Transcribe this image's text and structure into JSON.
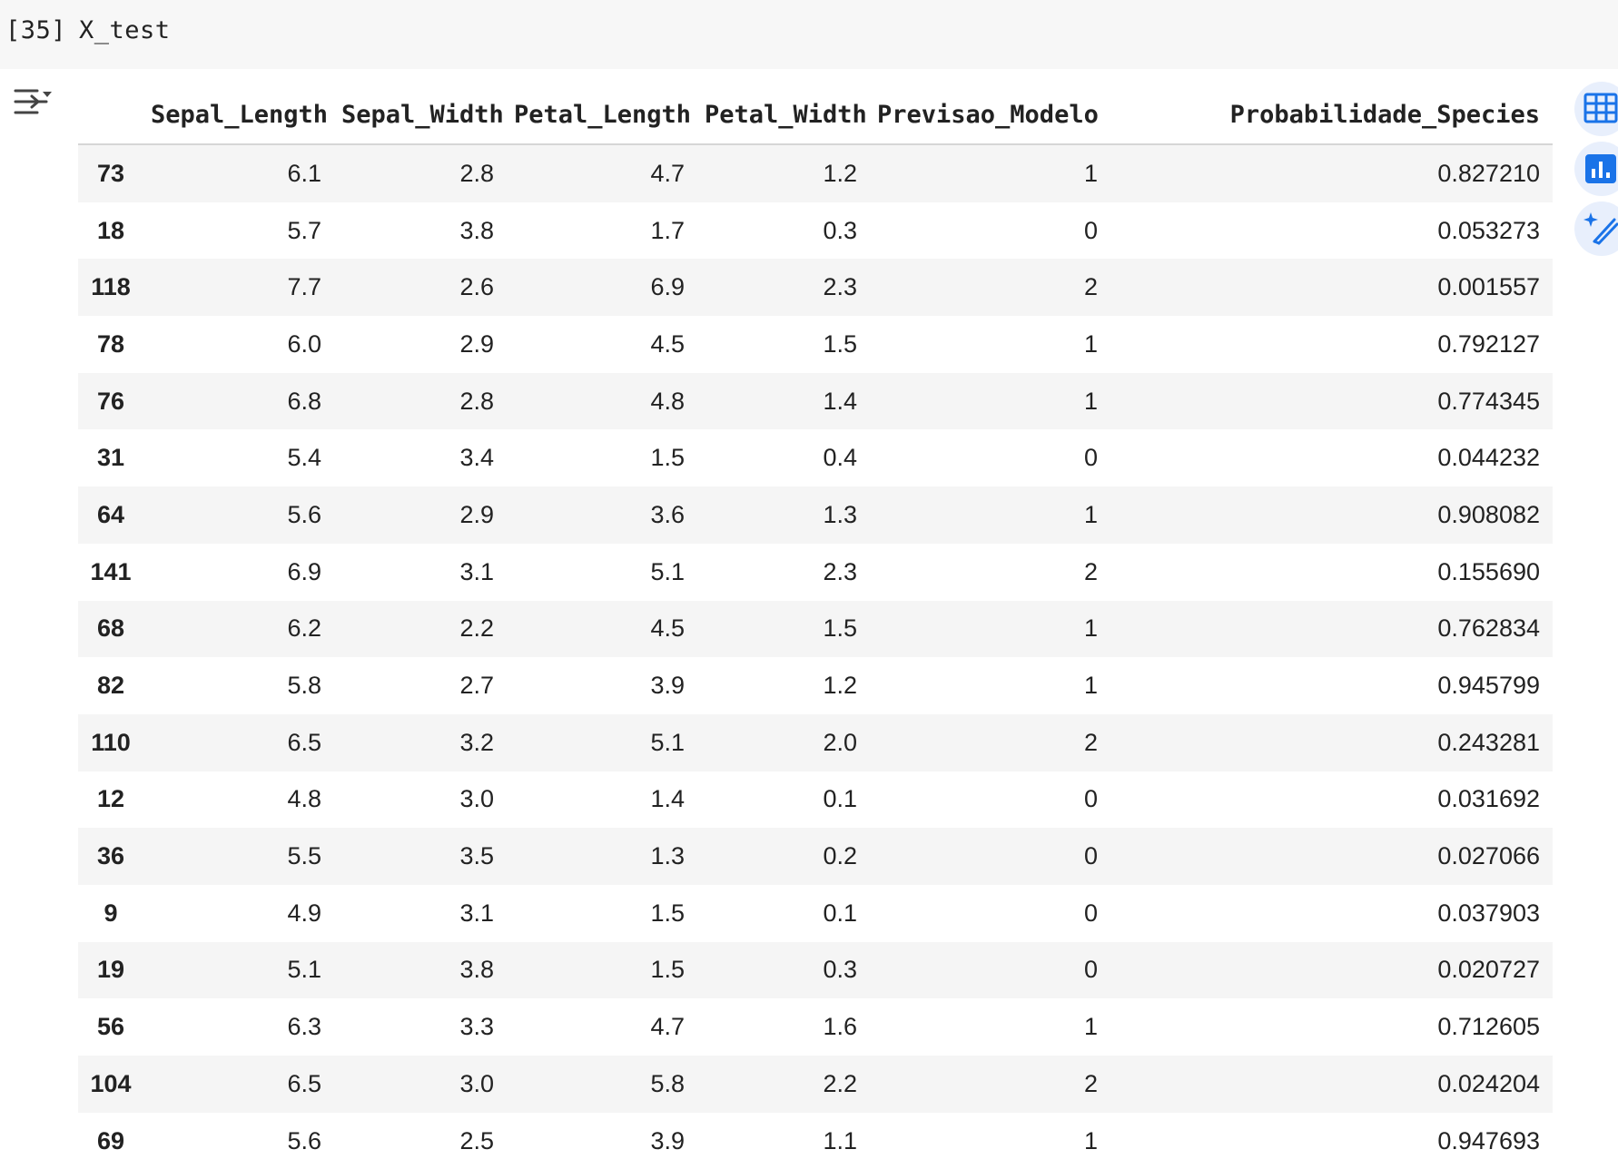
{
  "cell": {
    "execution_count": "[35]",
    "code": "X_test"
  },
  "icons": {
    "output_toggle": "output-options-icon",
    "table_view": "table-icon",
    "chart_suggest": "bar-chart-icon",
    "magic_edit": "magic-wand-icon"
  },
  "colors": {
    "accent_blue": "#1a73e8",
    "tool_bg": "#e8effc",
    "row_stripe": "#f5f5f5",
    "cell_bg": "#f7f7f7"
  },
  "table": {
    "columns": [
      "",
      "Sepal_Length",
      "Sepal_Width",
      "Petal_Length",
      "Petal_Width",
      "Previsao_Modelo",
      "Probabilidade_Species"
    ],
    "rows": [
      [
        "73",
        "6.1",
        "2.8",
        "4.7",
        "1.2",
        "1",
        "0.827210"
      ],
      [
        "18",
        "5.7",
        "3.8",
        "1.7",
        "0.3",
        "0",
        "0.053273"
      ],
      [
        "118",
        "7.7",
        "2.6",
        "6.9",
        "2.3",
        "2",
        "0.001557"
      ],
      [
        "78",
        "6.0",
        "2.9",
        "4.5",
        "1.5",
        "1",
        "0.792127"
      ],
      [
        "76",
        "6.8",
        "2.8",
        "4.8",
        "1.4",
        "1",
        "0.774345"
      ],
      [
        "31",
        "5.4",
        "3.4",
        "1.5",
        "0.4",
        "0",
        "0.044232"
      ],
      [
        "64",
        "5.6",
        "2.9",
        "3.6",
        "1.3",
        "1",
        "0.908082"
      ],
      [
        "141",
        "6.9",
        "3.1",
        "5.1",
        "2.3",
        "2",
        "0.155690"
      ],
      [
        "68",
        "6.2",
        "2.2",
        "4.5",
        "1.5",
        "1",
        "0.762834"
      ],
      [
        "82",
        "5.8",
        "2.7",
        "3.9",
        "1.2",
        "1",
        "0.945799"
      ],
      [
        "110",
        "6.5",
        "3.2",
        "5.1",
        "2.0",
        "2",
        "0.243281"
      ],
      [
        "12",
        "4.8",
        "3.0",
        "1.4",
        "0.1",
        "0",
        "0.031692"
      ],
      [
        "36",
        "5.5",
        "3.5",
        "1.3",
        "0.2",
        "0",
        "0.027066"
      ],
      [
        "9",
        "4.9",
        "3.1",
        "1.5",
        "0.1",
        "0",
        "0.037903"
      ],
      [
        "19",
        "5.1",
        "3.8",
        "1.5",
        "0.3",
        "0",
        "0.020727"
      ],
      [
        "56",
        "6.3",
        "3.3",
        "4.7",
        "1.6",
        "1",
        "0.712605"
      ],
      [
        "104",
        "6.5",
        "3.0",
        "5.8",
        "2.2",
        "2",
        "0.024204"
      ],
      [
        "69",
        "5.6",
        "2.5",
        "3.9",
        "1.1",
        "1",
        "0.947693"
      ]
    ]
  }
}
